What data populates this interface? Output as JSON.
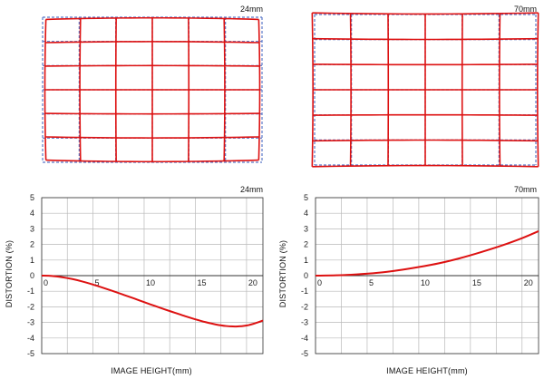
{
  "colors": {
    "curve": "#dd1111",
    "reference": "#5a78c8",
    "grid": "#b9b9b9",
    "axis": "#333333"
  },
  "grid_panels": [
    {
      "title": "24mm",
      "type": "barrel"
    },
    {
      "title": "70mm",
      "type": "pincushion"
    }
  ],
  "chart_data": [
    {
      "type": "line",
      "title": "24mm",
      "xlabel": "IMAGE HEIGHT(mm)",
      "ylabel": "DISTORTION (%)",
      "xlim": [
        0,
        21.6
      ],
      "ylim": [
        -5,
        5
      ],
      "xticks": [
        0,
        5,
        10,
        15,
        20
      ],
      "yticks": [
        5,
        4,
        3,
        2,
        1,
        0,
        -1,
        -2,
        -3,
        -4,
        -5
      ],
      "grid": true,
      "series": [
        {
          "x": [
            0,
            1,
            2,
            3,
            4,
            5,
            6,
            7,
            8,
            9,
            10,
            11,
            12,
            13,
            14,
            15,
            16,
            17,
            18,
            19,
            20,
            21,
            21.6
          ],
          "y": [
            0,
            -0.02,
            -0.1,
            -0.22,
            -0.38,
            -0.57,
            -0.78,
            -1.0,
            -1.23,
            -1.46,
            -1.7,
            -1.93,
            -2.16,
            -2.38,
            -2.6,
            -2.8,
            -2.98,
            -3.13,
            -3.23,
            -3.26,
            -3.2,
            -3.02,
            -2.88
          ]
        }
      ]
    },
    {
      "type": "line",
      "title": "70mm",
      "xlabel": "IMAGE HEIGHT(mm)",
      "ylabel": "DISTORTION (%)",
      "xlim": [
        0,
        21.6
      ],
      "ylim": [
        -5,
        5
      ],
      "xticks": [
        0,
        5,
        10,
        15,
        20
      ],
      "yticks": [
        5,
        4,
        3,
        2,
        1,
        0,
        -1,
        -2,
        -3,
        -4,
        -5
      ],
      "grid": true,
      "series": [
        {
          "x": [
            0,
            2,
            4,
            6,
            8,
            10,
            12,
            14,
            16,
            18,
            20,
            21.6
          ],
          "y": [
            0,
            0.02,
            0.08,
            0.18,
            0.34,
            0.55,
            0.8,
            1.12,
            1.5,
            1.92,
            2.4,
            2.85
          ]
        }
      ]
    }
  ]
}
